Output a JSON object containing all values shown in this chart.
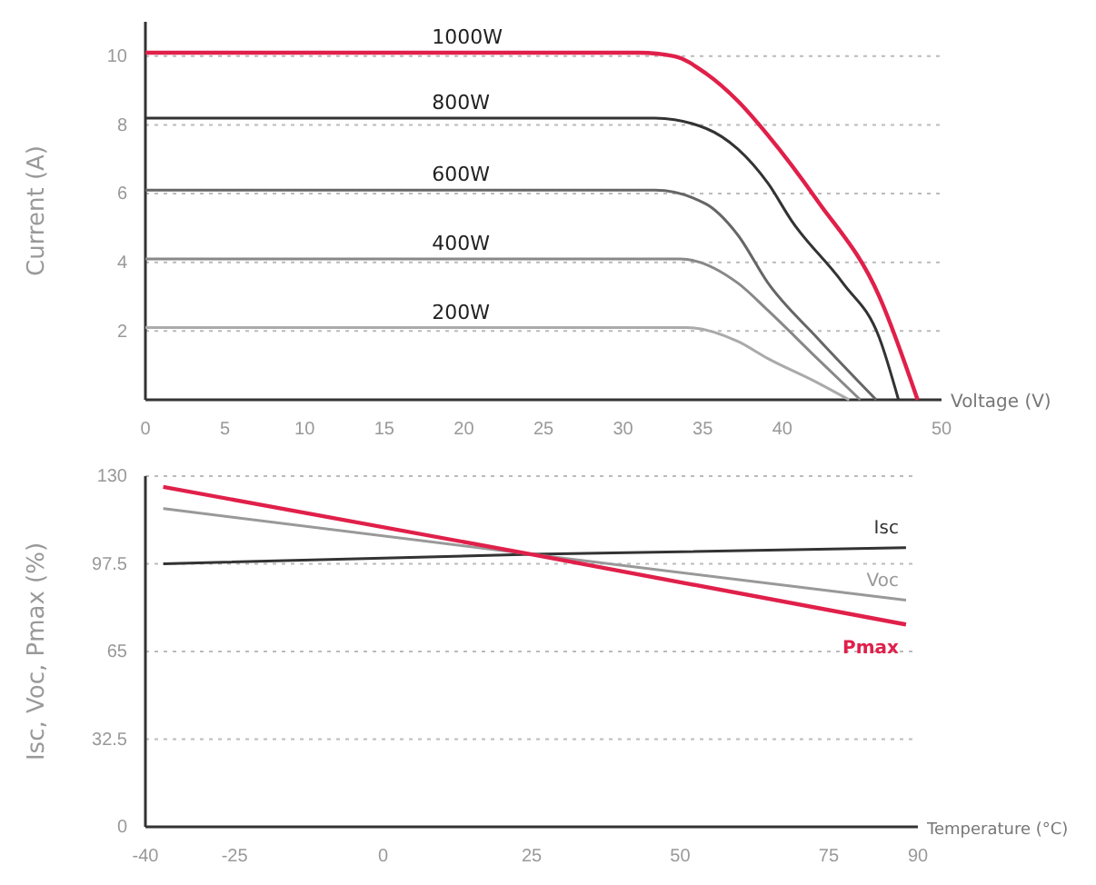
{
  "chart_data": [
    {
      "type": "line",
      "xlabel": "Voltage (V)",
      "ylabel": "Current (A)",
      "xlim": [
        0,
        50
      ],
      "ylim": [
        0,
        11
      ],
      "xticks": [
        0,
        5,
        10,
        15,
        20,
        25,
        30,
        35,
        40,
        50
      ],
      "yticks": [
        2,
        4,
        6,
        8,
        10
      ],
      "grid": "y",
      "marker": "none",
      "line_style": "solid",
      "series": [
        {
          "name": "1000W",
          "color": "#e0204a",
          "x": [
            0,
            31,
            33.2,
            35.2,
            37.2,
            39.1,
            42.2,
            46.1,
            48.5
          ],
          "values": [
            10.1,
            10.1,
            10,
            9.5,
            8.7,
            7.7,
            5.8,
            3,
            0
          ]
        },
        {
          "name": "800W",
          "color": "#333333",
          "x": [
            0,
            32,
            35.2,
            37.2,
            39.1,
            40.6,
            43.8,
            46.1,
            47.3
          ],
          "values": [
            8.2,
            8.2,
            7.9,
            7.3,
            6.3,
            5.2,
            3.4,
            1.8,
            0
          ]
        },
        {
          "name": "600W",
          "color": "#666666",
          "x": [
            0,
            32,
            35.2,
            37.2,
            39.1,
            42.2,
            45.9
          ],
          "values": [
            6.1,
            6.1,
            5.7,
            4.8,
            3.4,
            1.8,
            0
          ]
        },
        {
          "name": "400W",
          "color": "#888888",
          "x": [
            0,
            33.6,
            37.2,
            39.1,
            42.2,
            44.9
          ],
          "values": [
            4.1,
            4.1,
            3.4,
            2.6,
            1.2,
            0
          ]
        },
        {
          "name": "200W",
          "color": "#aaaaaa",
          "x": [
            0,
            34,
            37.2,
            39.1,
            42.2,
            44.2
          ],
          "values": [
            2.1,
            2.1,
            1.7,
            1.2,
            0.5,
            0
          ]
        }
      ]
    },
    {
      "type": "line",
      "xlabel": "Temperature (°C)",
      "ylabel": "Isc, Voc, Pmax (%)",
      "xlim": [
        -40,
        90
      ],
      "ylim": [
        0,
        130
      ],
      "xticks": [
        -40,
        -25,
        0,
        25,
        50,
        75,
        90
      ],
      "yticks": [
        0,
        32.5,
        65,
        97.5,
        130
      ],
      "grid": "y",
      "marker": "none",
      "line_style": "solid",
      "series": [
        {
          "name": "Isc",
          "color": "#333333",
          "x": [
            -37,
            25,
            88
          ],
          "values": [
            97.5,
            101,
            103.5
          ]
        },
        {
          "name": "Voc",
          "color": "#999999",
          "x": [
            -37,
            25,
            88
          ],
          "values": [
            118,
            101,
            84
          ]
        },
        {
          "name": "Pmax",
          "color": "#e0204a",
          "x": [
            -37,
            25,
            88
          ],
          "values": [
            126,
            101,
            75
          ]
        }
      ]
    }
  ]
}
